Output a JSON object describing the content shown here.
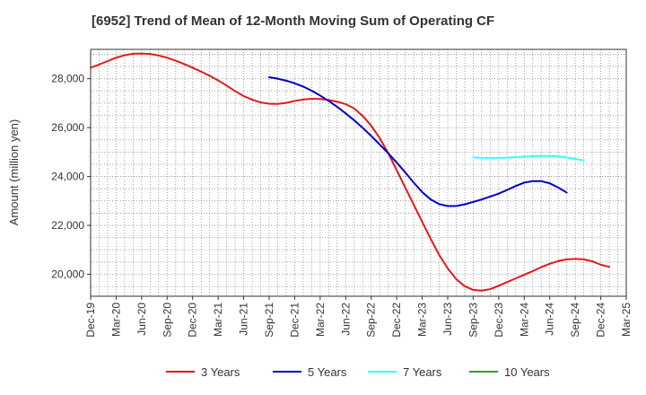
{
  "chart_data": {
    "type": "line",
    "title": "[6952]  Trend of Mean of 12-Month Moving Sum of Operating CF",
    "xlabel": "",
    "ylabel": "Amount (million yen)",
    "ylim": [
      19100,
      29200
    ],
    "y_ticks": [
      20000,
      22000,
      24000,
      26000,
      28000
    ],
    "y_tick_labels": [
      "20,000",
      "22,000",
      "24,000",
      "26,000",
      "28,000"
    ],
    "x_tick_labels": [
      "Dec-19",
      "Mar-20",
      "Jun-20",
      "Sep-20",
      "Dec-20",
      "Mar-21",
      "Jun-21",
      "Sep-21",
      "Dec-21",
      "Mar-22",
      "Jun-22",
      "Sep-22",
      "Dec-22",
      "Mar-23",
      "Jun-23",
      "Sep-23",
      "Dec-23",
      "Mar-24",
      "Jun-24",
      "Sep-24",
      "Dec-24",
      "Mar-25"
    ],
    "grid": true,
    "legend_position": "bottom",
    "series": [
      {
        "name": "3 Years",
        "color": "#e31a1c",
        "start_month": 0,
        "values": [
          28450,
          28580,
          28720,
          28860,
          28960,
          29020,
          29030,
          29010,
          28950,
          28860,
          28740,
          28600,
          28450,
          28290,
          28120,
          27930,
          27720,
          27490,
          27290,
          27140,
          27030,
          26980,
          26970,
          27010,
          27090,
          27150,
          27180,
          27170,
          27130,
          27060,
          26960,
          26780,
          26480,
          26080,
          25570,
          24960,
          24260,
          23550,
          22850,
          22140,
          21450,
          20790,
          20240,
          19800,
          19510,
          19360,
          19330,
          19390,
          19530,
          19680,
          19830,
          19980,
          20130,
          20290,
          20430,
          20540,
          20610,
          20630,
          20610,
          20530,
          20390,
          20300
        ]
      },
      {
        "name": "5 Years",
        "color": "#0000cc",
        "start_month": 21,
        "values": [
          28060,
          28000,
          27920,
          27810,
          27680,
          27510,
          27310,
          27090,
          26850,
          26580,
          26300,
          25990,
          25660,
          25310,
          24950,
          24570,
          24170,
          23750,
          23360,
          23060,
          22870,
          22790,
          22790,
          22860,
          22960,
          23060,
          23180,
          23300,
          23450,
          23610,
          23750,
          23810,
          23810,
          23720,
          23550,
          23340
        ]
      },
      {
        "name": "7 Years",
        "color": "#33ffff",
        "start_month": 45,
        "values": [
          24780,
          24760,
          24760,
          24760,
          24770,
          24790,
          24810,
          24830,
          24840,
          24840,
          24820,
          24780,
          24720,
          24660
        ]
      },
      {
        "name": "10 Years",
        "color": "#2ca02c",
        "start_month": 0,
        "values": []
      }
    ]
  }
}
